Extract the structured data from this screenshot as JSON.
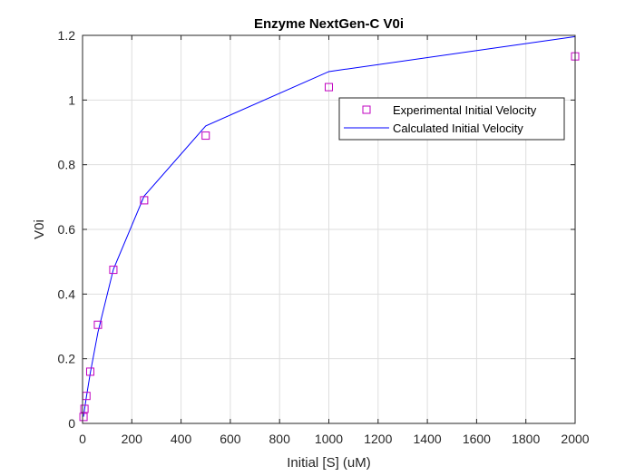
{
  "chart_data": {
    "type": "scatter",
    "title": "Enzyme NextGen-C V0i",
    "xlabel": "Initial [S] (uM)",
    "ylabel": "V0i",
    "xlim": [
      0,
      2000
    ],
    "ylim": [
      0,
      1.2
    ],
    "xticks": [
      0,
      200,
      400,
      600,
      800,
      1000,
      1200,
      1400,
      1600,
      1800,
      2000
    ],
    "yticks": [
      0,
      0.2,
      0.4,
      0.6,
      0.8,
      1,
      1.2
    ],
    "xtick_labels": [
      "0",
      "200",
      "400",
      "600",
      "800",
      "1000",
      "1200",
      "1400",
      "1600",
      "1800",
      "2000"
    ],
    "ytick_labels": [
      "0",
      "0.2",
      "0.4",
      "0.6",
      "0.8",
      "1",
      "1.2"
    ],
    "grid": true,
    "legend_position": "top-right",
    "series": [
      {
        "name": "Experimental Initial Velocity",
        "kind": "markers",
        "marker": "square",
        "color": "#C000C0",
        "x": [
          3.9,
          7.8,
          15.6,
          31.25,
          62.5,
          125,
          250,
          500,
          1000,
          2000
        ],
        "y": [
          0.02,
          0.045,
          0.085,
          0.16,
          0.305,
          0.475,
          0.69,
          0.89,
          1.04,
          1.135
        ]
      },
      {
        "name": "Calculated Initial Velocity",
        "kind": "line",
        "color": "#0000FF",
        "x": [
          3.9,
          7.8,
          15.6,
          31.25,
          62.5,
          125,
          250,
          500,
          1000,
          2000
        ],
        "y": [
          0.021,
          0.042,
          0.082,
          0.155,
          0.282,
          0.476,
          0.703,
          0.92,
          1.088,
          1.196
        ]
      }
    ]
  }
}
